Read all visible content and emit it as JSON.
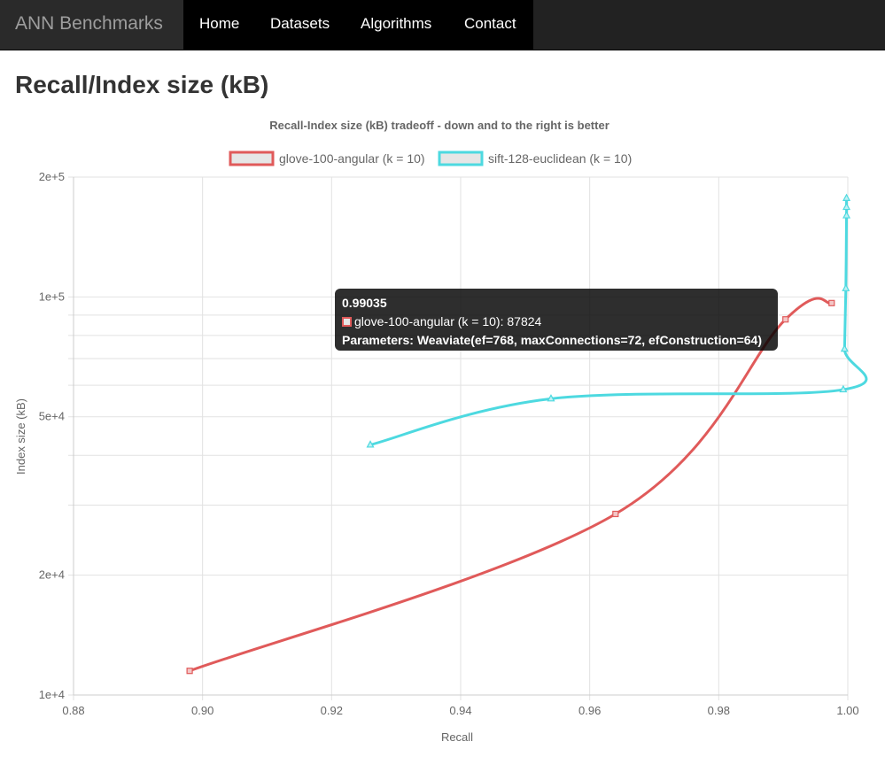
{
  "navbar": {
    "brand": "ANN Benchmarks",
    "links": [
      "Home",
      "Datasets",
      "Algorithms",
      "Contact"
    ]
  },
  "page": {
    "title": "Recall/Index size (kB)"
  },
  "chart_data": {
    "type": "line",
    "title": "Recall-Index size (kB) tradeoff - down and to the right is better",
    "xlabel": "Recall",
    "ylabel": "Index size (kB)",
    "xlim": [
      0.88,
      1.0
    ],
    "ylim": [
      10000,
      200000
    ],
    "yscale": "log",
    "grid": true,
    "legend_position": "top",
    "x_ticks": [
      "0.88",
      "0.90",
      "0.92",
      "0.94",
      "0.96",
      "0.98",
      "1.00"
    ],
    "y_ticks": [
      {
        "value": 10000,
        "label": "1e+4"
      },
      {
        "value": 20000,
        "label": "2e+4"
      },
      {
        "value": 50000,
        "label": "5e+4"
      },
      {
        "value": 100000,
        "label": "1e+5"
      },
      {
        "value": 200000,
        "label": "2e+5"
      }
    ],
    "series": [
      {
        "name": "glove-100-angular (k = 10)",
        "color": "#e05a5a",
        "marker": "square",
        "points": [
          {
            "x": 0.898,
            "y": 11500
          },
          {
            "x": 0.964,
            "y": 28500
          },
          {
            "x": 0.99035,
            "y": 87824
          },
          {
            "x": 0.9975,
            "y": 96500
          }
        ]
      },
      {
        "name": "sift-128-euclidean (k = 10)",
        "color": "#4dd9e0",
        "marker": "triangle",
        "points": [
          {
            "x": 0.926,
            "y": 42500
          },
          {
            "x": 0.954,
            "y": 55500
          },
          {
            "x": 0.9993,
            "y": 58500
          },
          {
            "x": 0.9995,
            "y": 74000
          },
          {
            "x": 0.9997,
            "y": 105000
          },
          {
            "x": 0.9998,
            "y": 160000
          },
          {
            "x": 0.9998,
            "y": 168000
          },
          {
            "x": 0.9998,
            "y": 177000
          }
        ]
      }
    ],
    "tooltip": {
      "title": "0.99035",
      "label": "glove-100-angular (k = 10): 87824",
      "footer": "Parameters: Weaviate(ef=768, maxConnections=72, efConstruction=64)"
    }
  }
}
